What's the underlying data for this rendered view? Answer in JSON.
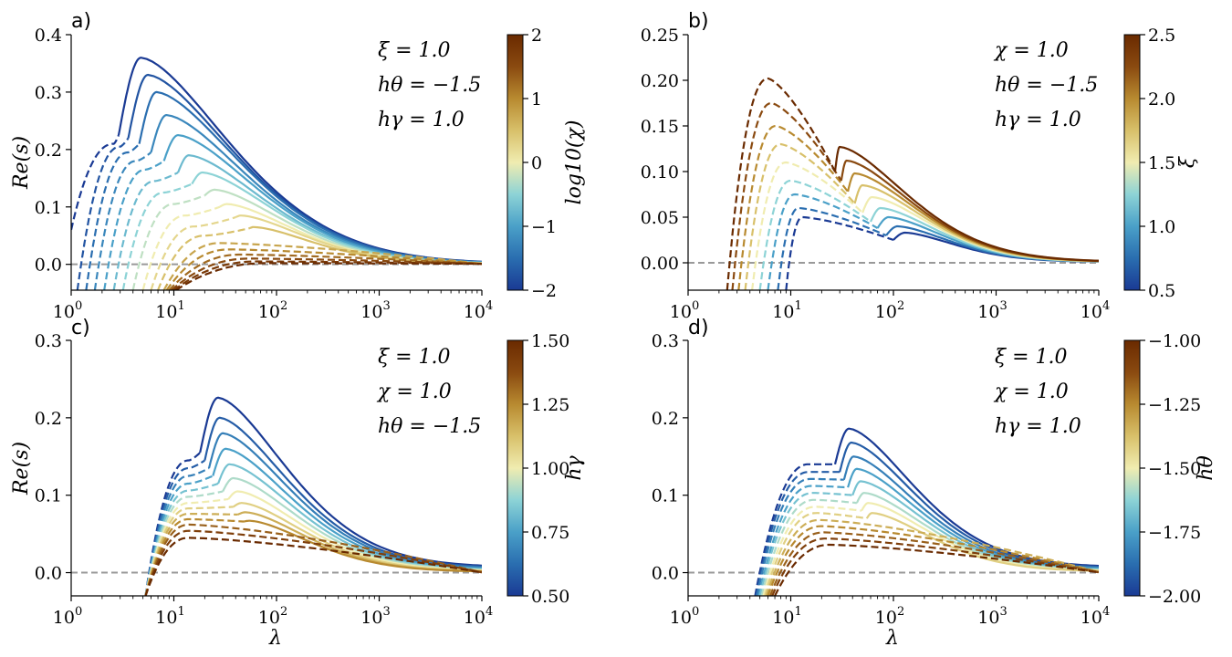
{
  "chart_data": [
    {
      "type": "line",
      "panel_label": "a)",
      "x_scale": "log",
      "xlim": [
        1,
        10000
      ],
      "ylim": [
        -0.045,
        0.4
      ],
      "xlabel": "",
      "ylabel": "Re(s)",
      "x_tick_bases": [
        "10",
        "10",
        "10",
        "10",
        "10"
      ],
      "x_tick_exps": [
        "0",
        "1",
        "2",
        "3",
        "4"
      ],
      "x_tick_values": [
        1,
        10,
        100,
        1000,
        10000
      ],
      "y_ticks": [
        0.0,
        0.1,
        0.2,
        0.3,
        0.4
      ],
      "y_tick_labels": [
        "0.0",
        "0.1",
        "0.2",
        "0.3",
        "0.4"
      ],
      "reference_line_y": 0,
      "annotations": [
        "ξ = 1.0",
        "hθ = −1.5",
        "hγ = 1.0"
      ],
      "colorbar": {
        "label": "log10(χ)",
        "min": -2,
        "max": 2,
        "ticks": [
          -2,
          -1,
          0,
          1,
          2
        ],
        "tick_labels": [
          "−2",
          "−1",
          "0",
          "1",
          "2"
        ]
      },
      "series": [
        {
          "param": -2.0,
          "peak_x": 4.8,
          "peak_y": 0.36,
          "branch_x": 2.9,
          "branch_y": 0.225,
          "dash_peak_x": 2.6,
          "dash_peak_y": 0.21,
          "start_x": 1.0,
          "start_y": 0.06
        },
        {
          "param": -1.75,
          "peak_x": 5.6,
          "peak_y": 0.33,
          "branch_x": 3.6,
          "branch_y": 0.22,
          "dash_peak_x": 3.0,
          "dash_peak_y": 0.205,
          "start_x": 1.15,
          "start_y": -0.045
        },
        {
          "param": -1.5,
          "peak_x": 6.8,
          "peak_y": 0.3,
          "branch_x": 4.6,
          "branch_y": 0.21,
          "dash_peak_x": 3.6,
          "dash_peak_y": 0.195,
          "start_x": 1.4,
          "start_y": -0.045
        },
        {
          "param": -1.25,
          "peak_x": 8.5,
          "peak_y": 0.26,
          "branch_x": 6.0,
          "branch_y": 0.195,
          "dash_peak_x": 4.3,
          "dash_peak_y": 0.18,
          "start_x": 1.7,
          "start_y": -0.045
        },
        {
          "param": -1.0,
          "peak_x": 11,
          "peak_y": 0.225,
          "branch_x": 8.0,
          "branch_y": 0.18,
          "dash_peak_x": 5.3,
          "dash_peak_y": 0.165,
          "start_x": 2.1,
          "start_y": -0.045
        },
        {
          "param": -0.75,
          "peak_x": 14,
          "peak_y": 0.19,
          "branch_x": 11,
          "branch_y": 0.16,
          "dash_peak_x": 6.5,
          "dash_peak_y": 0.145,
          "start_x": 2.6,
          "start_y": -0.045
        },
        {
          "param": -0.5,
          "peak_x": 19,
          "peak_y": 0.16,
          "branch_x": 15,
          "branch_y": 0.14,
          "dash_peak_x": 8.0,
          "dash_peak_y": 0.125,
          "start_x": 3.2,
          "start_y": -0.045
        },
        {
          "param": -0.25,
          "peak_x": 25,
          "peak_y": 0.13,
          "branch_x": 20,
          "branch_y": 0.12,
          "dash_peak_x": 10,
          "dash_peak_y": 0.105,
          "start_x": 4.0,
          "start_y": -0.045
        },
        {
          "param": 0.0,
          "peak_x": 33,
          "peak_y": 0.105,
          "branch_x": 28,
          "branch_y": 0.1,
          "dash_peak_x": 13,
          "dash_peak_y": 0.085,
          "start_x": 5.0,
          "start_y": -0.045
        },
        {
          "param": 0.25,
          "peak_x": 45,
          "peak_y": 0.085,
          "branch_x": 40,
          "branch_y": 0.082,
          "dash_peak_x": 16,
          "dash_peak_y": 0.066,
          "start_x": 6.0,
          "start_y": -0.045
        },
        {
          "param": 0.5,
          "peak_x": 60,
          "peak_y": 0.065,
          "branch_x": 55,
          "branch_y": 0.063,
          "dash_peak_x": 20,
          "dash_peak_y": 0.05,
          "start_x": 7.0,
          "start_y": -0.045
        },
        {
          "param": 0.75,
          "dash_peak_x": 28,
          "dash_peak_y": 0.037,
          "start_x": 8.0,
          "start_y": -0.045
        },
        {
          "param": 1.0,
          "dash_peak_x": 35,
          "dash_peak_y": 0.026,
          "start_x": 8.5,
          "start_y": -0.045
        },
        {
          "param": 1.25,
          "dash_peak_x": 45,
          "dash_peak_y": 0.017,
          "start_x": 9.0,
          "start_y": -0.045
        },
        {
          "param": 1.5,
          "dash_peak_x": 55,
          "dash_peak_y": 0.01,
          "start_x": 9.5,
          "start_y": -0.045
        },
        {
          "param": 1.75,
          "dash_peak_x": 65,
          "dash_peak_y": 0.005,
          "start_x": 10,
          "start_y": -0.045
        },
        {
          "param": 2.0,
          "dash_peak_x": 80,
          "dash_peak_y": 0.002,
          "start_x": 10.5,
          "start_y": -0.045
        }
      ]
    },
    {
      "type": "line",
      "panel_label": "b)",
      "x_scale": "log",
      "xlim": [
        1,
        10000
      ],
      "ylim": [
        -0.03,
        0.25
      ],
      "xlabel": "",
      "ylabel": "",
      "x_tick_bases": [
        "10",
        "10",
        "10",
        "10",
        "10"
      ],
      "x_tick_exps": [
        "0",
        "1",
        "2",
        "3",
        "4"
      ],
      "x_tick_values": [
        1,
        10,
        100,
        1000,
        10000
      ],
      "y_ticks": [
        0.0,
        0.05,
        0.1,
        0.15,
        0.2,
        0.25
      ],
      "y_tick_labels": [
        "0.00",
        "0.05",
        "0.10",
        "0.15",
        "0.20",
        "0.25"
      ],
      "reference_line_y": 0,
      "annotations": [
        "χ = 1.0",
        "hθ = −1.5",
        "hγ = 1.0"
      ],
      "colorbar": {
        "label": "ξ",
        "min": 0.5,
        "max": 2.5,
        "ticks": [
          0.5,
          1.0,
          1.5,
          2.0,
          2.5
        ],
        "tick_labels": [
          "0.5",
          "1.0",
          "1.5",
          "2.0",
          "2.5"
        ]
      },
      "series": [
        {
          "param": 0.5,
          "dash_peak_x": 13,
          "dash_peak_y": 0.05,
          "branch_x": 100,
          "branch_y": 0.025,
          "peak_x": 130,
          "peak_y": 0.033,
          "start_x": 9.0,
          "start_y": -0.03
        },
        {
          "param": 0.75,
          "dash_peak_x": 12,
          "dash_peak_y": 0.06,
          "branch_x": 85,
          "branch_y": 0.03,
          "peak_x": 110,
          "peak_y": 0.04,
          "start_x": 7.5,
          "start_y": -0.03
        },
        {
          "param": 1.0,
          "dash_peak_x": 11,
          "dash_peak_y": 0.075,
          "branch_x": 70,
          "branch_y": 0.038,
          "peak_x": 90,
          "peak_y": 0.05,
          "start_x": 6.0,
          "start_y": -0.03
        },
        {
          "param": 1.25,
          "dash_peak_x": 10,
          "dash_peak_y": 0.09,
          "branch_x": 60,
          "branch_y": 0.045,
          "peak_x": 75,
          "peak_y": 0.06,
          "start_x": 5.0,
          "start_y": -0.03
        },
        {
          "param": 1.5,
          "dash_peak_x": 9,
          "dash_peak_y": 0.11,
          "branch_x": 50,
          "branch_y": 0.055,
          "peak_x": 62,
          "peak_y": 0.072,
          "start_x": 4.2,
          "start_y": -0.03
        },
        {
          "param": 1.75,
          "dash_peak_x": 8,
          "dash_peak_y": 0.13,
          "branch_x": 42,
          "branch_y": 0.065,
          "peak_x": 50,
          "peak_y": 0.085,
          "start_x": 3.6,
          "start_y": -0.03
        },
        {
          "param": 2.0,
          "dash_peak_x": 7.2,
          "dash_peak_y": 0.15,
          "branch_x": 36,
          "branch_y": 0.078,
          "peak_x": 42,
          "peak_y": 0.098,
          "start_x": 3.1,
          "start_y": -0.03
        },
        {
          "param": 2.25,
          "dash_peak_x": 6.5,
          "dash_peak_y": 0.175,
          "branch_x": 31,
          "branch_y": 0.09,
          "peak_x": 35,
          "peak_y": 0.112,
          "start_x": 2.7,
          "start_y": -0.03
        },
        {
          "param": 2.5,
          "dash_peak_x": 6.0,
          "dash_peak_y": 0.202,
          "branch_x": 27,
          "branch_y": 0.1,
          "peak_x": 30,
          "peak_y": 0.127,
          "start_x": 2.4,
          "start_y": -0.03
        }
      ]
    },
    {
      "type": "line",
      "panel_label": "c)",
      "x_scale": "log",
      "xlim": [
        1,
        10000
      ],
      "ylim": [
        -0.03,
        0.3
      ],
      "xlabel": "λ",
      "ylabel": "Re(s)",
      "x_tick_bases": [
        "10",
        "10",
        "10",
        "10",
        "10"
      ],
      "x_tick_exps": [
        "0",
        "1",
        "2",
        "3",
        "4"
      ],
      "x_tick_values": [
        1,
        10,
        100,
        1000,
        10000
      ],
      "y_ticks": [
        0.0,
        0.1,
        0.2,
        0.3
      ],
      "y_tick_labels": [
        "0.0",
        "0.1",
        "0.2",
        "0.3"
      ],
      "reference_line_y": 0,
      "annotations": [
        "ξ = 1.0",
        "χ = 1.0",
        "hθ = −1.5"
      ],
      "colorbar": {
        "label": "hγ",
        "min": 0.5,
        "max": 1.5,
        "ticks": [
          0.5,
          0.75,
          1.0,
          1.25,
          1.5
        ],
        "tick_labels": [
          "0.50",
          "0.75",
          "1.00",
          "1.25",
          "1.50"
        ]
      },
      "series": [
        {
          "param": 0.5,
          "dash_peak_x": 14,
          "dash_peak_y": 0.145,
          "branch_x": 18,
          "branch_y": 0.155,
          "peak_x": 27,
          "peak_y": 0.226,
          "tail_y": 0.007,
          "start_x": 5.3,
          "start_y": -0.03
        },
        {
          "param": 0.583,
          "dash_peak_x": 14,
          "dash_peak_y": 0.135,
          "branch_x": 20,
          "branch_y": 0.145,
          "peak_x": 28,
          "peak_y": 0.2,
          "tail_y": 0.006,
          "start_x": 5.3,
          "start_y": -0.03
        },
        {
          "param": 0.667,
          "dash_peak_x": 14,
          "dash_peak_y": 0.125,
          "branch_x": 22,
          "branch_y": 0.135,
          "peak_x": 30,
          "peak_y": 0.18,
          "tail_y": 0.005,
          "start_x": 5.3,
          "start_y": -0.03
        },
        {
          "param": 0.75,
          "dash_peak_x": 14,
          "dash_peak_y": 0.115,
          "branch_x": 24,
          "branch_y": 0.125,
          "peak_x": 32,
          "peak_y": 0.16,
          "tail_y": 0.004,
          "start_x": 5.3,
          "start_y": -0.03
        },
        {
          "param": 0.833,
          "dash_peak_x": 14,
          "dash_peak_y": 0.106,
          "branch_x": 27,
          "branch_y": 0.115,
          "peak_x": 35,
          "peak_y": 0.14,
          "tail_y": 0.003,
          "start_x": 5.3,
          "start_y": -0.03
        },
        {
          "param": 0.917,
          "dash_peak_x": 14,
          "dash_peak_y": 0.098,
          "branch_x": 30,
          "branch_y": 0.105,
          "peak_x": 38,
          "peak_y": 0.122,
          "tail_y": 0.0025,
          "start_x": 5.3,
          "start_y": -0.03
        },
        {
          "param": 1.0,
          "dash_peak_x": 14,
          "dash_peak_y": 0.09,
          "branch_x": 34,
          "branch_y": 0.095,
          "peak_x": 42,
          "peak_y": 0.105,
          "tail_y": 0.002,
          "start_x": 5.3,
          "start_y": -0.03
        },
        {
          "param": 1.083,
          "dash_peak_x": 14,
          "dash_peak_y": 0.083,
          "branch_x": 38,
          "branch_y": 0.085,
          "peak_x": 46,
          "peak_y": 0.09,
          "tail_y": 0.0015,
          "start_x": 5.3,
          "start_y": -0.03
        },
        {
          "param": 1.167,
          "dash_peak_x": 14,
          "dash_peak_y": 0.076,
          "branch_x": 42,
          "branch_y": 0.075,
          "peak_x": 50,
          "peak_y": 0.078,
          "tail_y": 0.001,
          "start_x": 5.3,
          "start_y": -0.03
        },
        {
          "param": 1.25,
          "dash_peak_x": 14,
          "dash_peak_y": 0.069,
          "branch_x": 48,
          "branch_y": 0.066,
          "peak_x": 55,
          "peak_y": 0.067,
          "tail_y": 0.001,
          "start_x": 5.3,
          "start_y": -0.03
        },
        {
          "param": 1.333,
          "dash_peak_x": 14,
          "dash_peak_y": 0.062,
          "tail_y": 0.0005,
          "start_x": 5.3,
          "start_y": -0.03
        },
        {
          "param": 1.417,
          "dash_peak_x": 14,
          "dash_peak_y": 0.054,
          "tail_y": 0.0003,
          "start_x": 5.3,
          "start_y": -0.03
        },
        {
          "param": 1.5,
          "dash_peak_x": 14,
          "dash_peak_y": 0.045,
          "tail_y": 0.0002,
          "start_x": 5.3,
          "start_y": -0.03
        }
      ]
    },
    {
      "type": "line",
      "panel_label": "d)",
      "x_scale": "log",
      "xlim": [
        1,
        10000
      ],
      "ylim": [
        -0.03,
        0.3
      ],
      "xlabel": "λ",
      "ylabel": "",
      "x_tick_bases": [
        "10",
        "10",
        "10",
        "10",
        "10"
      ],
      "x_tick_exps": [
        "0",
        "1",
        "2",
        "3",
        "4"
      ],
      "x_tick_values": [
        1,
        10,
        100,
        1000,
        10000
      ],
      "y_ticks": [
        0.0,
        0.1,
        0.2,
        0.3
      ],
      "y_tick_labels": [
        "0.0",
        "0.1",
        "0.2",
        "0.3"
      ],
      "reference_line_y": 0,
      "annotations": [
        "ξ = 1.0",
        "χ = 1.0",
        "hγ = 1.0"
      ],
      "colorbar": {
        "label": "hθ",
        "min": -2.0,
        "max": -1.0,
        "ticks": [
          -2.0,
          -1.75,
          -1.5,
          -1.25,
          -1.0
        ],
        "tick_labels": [
          "−2.00",
          "−1.75",
          "−1.50",
          "−1.25",
          "−1.00"
        ]
      },
      "series": [
        {
          "param": -2.0,
          "dash_peak_x": 15,
          "dash_peak_y": 0.14,
          "branch_x": 27,
          "branch_y": 0.14,
          "peak_x": 37,
          "peak_y": 0.186,
          "tail_y": 0.007,
          "start_x": 4.5,
          "start_y": -0.03
        },
        {
          "param": -1.917,
          "dash_peak_x": 15,
          "dash_peak_y": 0.13,
          "branch_x": 30,
          "branch_y": 0.13,
          "peak_x": 39,
          "peak_y": 0.168,
          "tail_y": 0.006,
          "start_x": 4.6,
          "start_y": -0.03
        },
        {
          "param": -1.833,
          "dash_peak_x": 15.5,
          "dash_peak_y": 0.121,
          "branch_x": 33,
          "branch_y": 0.12,
          "peak_x": 41,
          "peak_y": 0.15,
          "tail_y": 0.005,
          "start_x": 4.7,
          "start_y": -0.03
        },
        {
          "param": -1.75,
          "dash_peak_x": 16,
          "dash_peak_y": 0.112,
          "branch_x": 36,
          "branch_y": 0.11,
          "peak_x": 44,
          "peak_y": 0.134,
          "tail_y": 0.004,
          "start_x": 4.9,
          "start_y": -0.03
        },
        {
          "param": -1.667,
          "dash_peak_x": 16.5,
          "dash_peak_y": 0.103,
          "branch_x": 40,
          "branch_y": 0.1,
          "peak_x": 48,
          "peak_y": 0.118,
          "tail_y": 0.003,
          "start_x": 5.0,
          "start_y": -0.03
        },
        {
          "param": -1.583,
          "dash_peak_x": 17,
          "dash_peak_y": 0.094,
          "branch_x": 44,
          "branch_y": 0.09,
          "peak_x": 52,
          "peak_y": 0.103,
          "tail_y": 0.0025,
          "start_x": 5.2,
          "start_y": -0.03
        },
        {
          "param": -1.5,
          "dash_peak_x": 17.5,
          "dash_peak_y": 0.085,
          "branch_x": 49,
          "branch_y": 0.08,
          "peak_x": 57,
          "peak_y": 0.09,
          "tail_y": 0.002,
          "start_x": 5.4,
          "start_y": -0.03
        },
        {
          "param": -1.417,
          "dash_peak_x": 18,
          "dash_peak_y": 0.077,
          "branch_x": 55,
          "branch_y": 0.07,
          "peak_x": 62,
          "peak_y": 0.077,
          "tail_y": 0.0015,
          "start_x": 5.6,
          "start_y": -0.03
        },
        {
          "param": -1.333,
          "dash_peak_x": 19,
          "dash_peak_y": 0.068,
          "tail_y": 0.001,
          "start_x": 5.8,
          "start_y": -0.03
        },
        {
          "param": -1.25,
          "dash_peak_x": 20,
          "dash_peak_y": 0.06,
          "tail_y": 0.0008,
          "start_x": 6.0,
          "start_y": -0.03
        },
        {
          "param": -1.167,
          "dash_peak_x": 21,
          "dash_peak_y": 0.052,
          "tail_y": 0.0006,
          "start_x": 6.3,
          "start_y": -0.03
        },
        {
          "param": -1.083,
          "dash_peak_x": 22,
          "dash_peak_y": 0.044,
          "tail_y": 0.0004,
          "start_x": 6.6,
          "start_y": -0.03
        },
        {
          "param": -1.0,
          "dash_peak_x": 24,
          "dash_peak_y": 0.036,
          "tail_y": 0.0003,
          "start_x": 7.0,
          "start_y": -0.03
        }
      ]
    }
  ],
  "colormap": [
    "#1a3a94",
    "#2a6eb0",
    "#4aa0c8",
    "#8dd3d6",
    "#f0ecb0",
    "#d8c06a",
    "#b88a30",
    "#8a4a10",
    "#6a2a00"
  ]
}
